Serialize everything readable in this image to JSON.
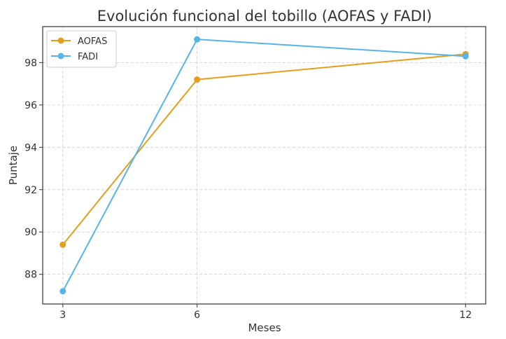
{
  "chart_data": {
    "type": "line",
    "title": "Evolución funcional del tobillo (AOFAS y FADI)",
    "xlabel": "Meses",
    "ylabel": "Puntaje",
    "x": [
      3,
      6,
      12
    ],
    "xticks": [
      "3",
      "6",
      "12"
    ],
    "yticks": [
      "88",
      "90",
      "92",
      "94",
      "96",
      "98"
    ],
    "xlim": [
      2.55,
      12.45
    ],
    "ylim": [
      86.6,
      99.7
    ],
    "grid": true,
    "legend_position": "top-left",
    "series": [
      {
        "name": "AOFAS",
        "values": [
          89.4,
          97.2,
          98.4
        ],
        "color": "#E69F1C"
      },
      {
        "name": "FADI",
        "values": [
          87.2,
          99.1,
          98.3
        ],
        "color": "#56B4E9"
      }
    ]
  }
}
